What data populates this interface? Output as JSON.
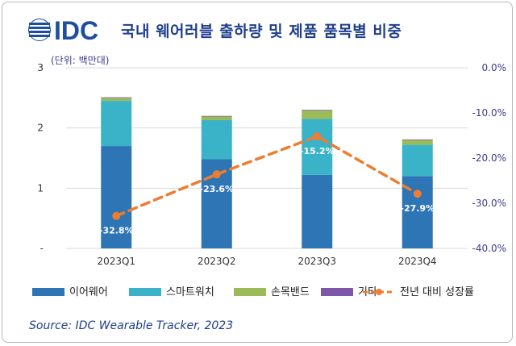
{
  "header": {
    "logo_text": "IDC",
    "title": "국내 웨어러블 출하량 및 제품 품목별 비중",
    "unit": "(단위: 백만대)"
  },
  "source": "Source: IDC Wearable Tracker, 2023",
  "chart_data": {
    "type": "bar",
    "stacked": true,
    "categories": [
      "2023Q1",
      "2023Q2",
      "2023Q3",
      "2023Q4"
    ],
    "series": [
      {
        "name": "이어웨어",
        "color": "#2e75b6",
        "values": [
          1.7,
          1.48,
          1.22,
          1.2
        ]
      },
      {
        "name": "스마트워치",
        "color": "#3ab3c8",
        "values": [
          0.75,
          0.65,
          0.93,
          0.52
        ]
      },
      {
        "name": "손목밴드",
        "color": "#9bbb59",
        "values": [
          0.05,
          0.06,
          0.14,
          0.08
        ]
      },
      {
        "name": "기타",
        "color": "#7e57a8",
        "values": [
          0.01,
          0.01,
          0.01,
          0.01
        ]
      }
    ],
    "line_series": {
      "name": "전년 대비 성장률",
      "color": "#ed7d31",
      "values": [
        -32.8,
        -23.6,
        -15.2,
        -27.9
      ],
      "labels": [
        "-32.8%",
        "-23.6%",
        "-15.2%",
        "-27.9%"
      ]
    },
    "y_left": {
      "range": [
        0,
        3
      ],
      "ticks": [
        "-",
        "1",
        "2",
        "3"
      ]
    },
    "y_right": {
      "range": [
        -40,
        0
      ],
      "ticks": [
        "0.0%",
        "-10.0%",
        "-20.0%",
        "-30.0%",
        "-40.0%"
      ]
    },
    "grid": true,
    "legend_position": "bottom"
  }
}
